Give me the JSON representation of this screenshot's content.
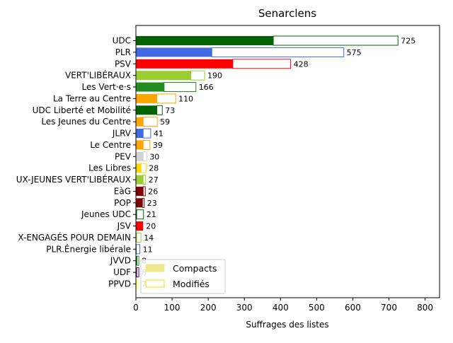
{
  "chart_data": {
    "type": "bar",
    "orientation": "horizontal",
    "title": "Senarclens",
    "xlabel": "Suffrages des listes",
    "ylabel": "",
    "xlim": [
      0,
      840
    ],
    "xticks": [
      0,
      100,
      200,
      300,
      400,
      500,
      600,
      700,
      800
    ],
    "grid": false,
    "legend_position": "lower-left",
    "legend": [
      {
        "label": "Compacts",
        "style": "filled",
        "color": "#F0E68C"
      },
      {
        "label": "Modifiés",
        "style": "outlined",
        "color": "#FFD700"
      }
    ],
    "categories": [
      "UDC",
      "PLR",
      "PSV",
      "VERT'LIBÉRAUX",
      "Les Vert·e·s",
      "La Terre au Centre",
      "UDC Liberté et Mobilité",
      "Les Jeunes du Centre",
      "JLRV",
      "Le Centre",
      "PEV",
      "Les Libres",
      "UX-JEUNES VERT'LIBÉRAUX",
      "EàG",
      "POP",
      "Jeunes UDC",
      "JSV",
      "X-ENGAGÉS POUR DEMAIN",
      "PLR.Énergie libérale",
      "JVVD",
      "UDF",
      "PPVD"
    ],
    "colors": [
      "#006400",
      "#4169E1",
      "#FF0000",
      "#9ACD32",
      "#228B22",
      "#FFA500",
      "#006400",
      "#FFA500",
      "#4169E1",
      "#FFA500",
      "#D3D3D3",
      "#FFD700",
      "#9ACD32",
      "#800000",
      "#800000",
      "#006400",
      "#FF0000",
      "#9ACD32",
      "#4169E1",
      "#228B22",
      "#4B0082",
      "#FFFF66"
    ],
    "series": [
      {
        "name": "Compacts",
        "values": [
          380,
          210,
          268,
          152,
          78,
          58,
          58,
          20,
          20,
          20,
          20,
          14,
          20,
          20,
          18,
          2,
          20,
          2,
          1,
          3,
          2,
          2
        ]
      },
      {
        "name": "Modifiés",
        "values": [
          345,
          365,
          160,
          38,
          88,
          52,
          15,
          39,
          21,
          19,
          10,
          14,
          7,
          6,
          5,
          19,
          0,
          12,
          10,
          5,
          6,
          5
        ]
      }
    ],
    "totals": [
      725,
      575,
      428,
      190,
      166,
      110,
      73,
      59,
      41,
      39,
      30,
      28,
      27,
      26,
      23,
      21,
      20,
      14,
      11,
      8,
      8,
      7
    ]
  }
}
